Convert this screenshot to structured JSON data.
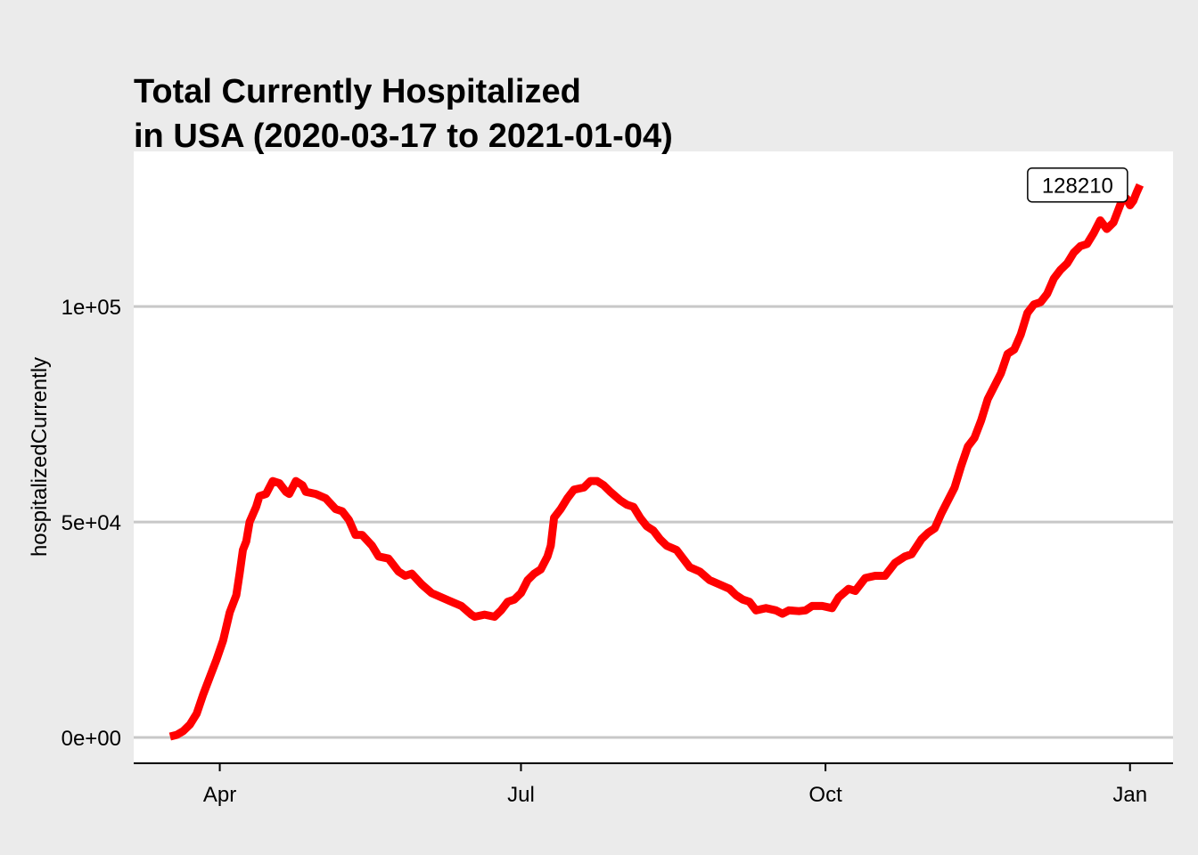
{
  "chart_data": {
    "type": "line",
    "title_line1": "Total Currently Hospitalized",
    "title_line2": "in USA (2020-03-17 to 2021-01-04)",
    "xlabel": "",
    "ylabel": "hospitalizedCurrently",
    "ylim": [
      -6000,
      136000
    ],
    "xlim": [
      "2020-03-06",
      "2021-01-14"
    ],
    "grid": "horizontal major",
    "line_color": "#ff0000",
    "x_ticks": [
      {
        "date": "2020-04-01",
        "label": "Apr"
      },
      {
        "date": "2020-07-01",
        "label": "Jul"
      },
      {
        "date": "2020-10-01",
        "label": "Oct"
      },
      {
        "date": "2021-01-01",
        "label": "Jan"
      }
    ],
    "y_ticks": [
      {
        "value": 0,
        "label": "0e+00"
      },
      {
        "value": 50000,
        "label": "5e+04"
      },
      {
        "value": 100000,
        "label": "1e+05"
      }
    ],
    "annotation": {
      "date": "2021-01-04",
      "value": 128210,
      "label": "128210"
    },
    "series": [
      {
        "points": [
          [
            "2020-03-17",
            200
          ],
          [
            "2020-03-19",
            600
          ],
          [
            "2020-03-21",
            1500
          ],
          [
            "2020-03-23",
            3000
          ],
          [
            "2020-03-25",
            5500
          ],
          [
            "2020-03-27",
            10000
          ],
          [
            "2020-03-29",
            14000
          ],
          [
            "2020-03-31",
            18000
          ],
          [
            "2020-04-02",
            22500
          ],
          [
            "2020-04-04",
            29000
          ],
          [
            "2020-04-06",
            33000
          ],
          [
            "2020-04-07",
            38000
          ],
          [
            "2020-04-08",
            43500
          ],
          [
            "2020-04-09",
            45500
          ],
          [
            "2020-04-10",
            50000
          ],
          [
            "2020-04-12",
            53500
          ],
          [
            "2020-04-13",
            56000
          ],
          [
            "2020-04-15",
            56500
          ],
          [
            "2020-04-17",
            59500
          ],
          [
            "2020-04-19",
            59000
          ],
          [
            "2020-04-21",
            57000
          ],
          [
            "2020-04-22",
            56500
          ],
          [
            "2020-04-24",
            59500
          ],
          [
            "2020-04-26",
            58500
          ],
          [
            "2020-04-27",
            57000
          ],
          [
            "2020-04-30",
            56500
          ],
          [
            "2020-05-03",
            55500
          ],
          [
            "2020-05-06",
            53000
          ],
          [
            "2020-05-08",
            52500
          ],
          [
            "2020-05-10",
            50500
          ],
          [
            "2020-05-12",
            47000
          ],
          [
            "2020-05-14",
            47000
          ],
          [
            "2020-05-17",
            44500
          ],
          [
            "2020-05-19",
            42000
          ],
          [
            "2020-05-22",
            41500
          ],
          [
            "2020-05-25",
            38500
          ],
          [
            "2020-05-27",
            37500
          ],
          [
            "2020-05-29",
            38000
          ],
          [
            "2020-06-01",
            35500
          ],
          [
            "2020-06-04",
            33500
          ],
          [
            "2020-06-07",
            32500
          ],
          [
            "2020-06-10",
            31500
          ],
          [
            "2020-06-13",
            30500
          ],
          [
            "2020-06-16",
            28500
          ],
          [
            "2020-06-17",
            28000
          ],
          [
            "2020-06-20",
            28500
          ],
          [
            "2020-06-23",
            28000
          ],
          [
            "2020-06-25",
            29500
          ],
          [
            "2020-06-27",
            31500
          ],
          [
            "2020-06-29",
            32000
          ],
          [
            "2020-07-01",
            33500
          ],
          [
            "2020-07-03",
            36500
          ],
          [
            "2020-07-05",
            38000
          ],
          [
            "2020-07-07",
            39000
          ],
          [
            "2020-07-09",
            42000
          ],
          [
            "2020-07-10",
            44500
          ],
          [
            "2020-07-11",
            51000
          ],
          [
            "2020-07-13",
            53000
          ],
          [
            "2020-07-15",
            55500
          ],
          [
            "2020-07-17",
            57500
          ],
          [
            "2020-07-20",
            58000
          ],
          [
            "2020-07-22",
            59500
          ],
          [
            "2020-07-24",
            59500
          ],
          [
            "2020-07-26",
            58500
          ],
          [
            "2020-07-28",
            57000
          ],
          [
            "2020-07-31",
            55000
          ],
          [
            "2020-08-02",
            54000
          ],
          [
            "2020-08-04",
            53500
          ],
          [
            "2020-08-06",
            51000
          ],
          [
            "2020-08-08",
            49000
          ],
          [
            "2020-08-10",
            48000
          ],
          [
            "2020-08-12",
            46000
          ],
          [
            "2020-08-14",
            44500
          ],
          [
            "2020-08-17",
            43500
          ],
          [
            "2020-08-19",
            41500
          ],
          [
            "2020-08-21",
            39500
          ],
          [
            "2020-08-24",
            38500
          ],
          [
            "2020-08-27",
            36500
          ],
          [
            "2020-08-30",
            35500
          ],
          [
            "2020-09-02",
            34500
          ],
          [
            "2020-09-04",
            33000
          ],
          [
            "2020-09-06",
            32000
          ],
          [
            "2020-09-08",
            31500
          ],
          [
            "2020-09-10",
            29500
          ],
          [
            "2020-09-13",
            30000
          ],
          [
            "2020-09-16",
            29500
          ],
          [
            "2020-09-18",
            28700
          ],
          [
            "2020-09-20",
            29500
          ],
          [
            "2020-09-23",
            29300
          ],
          [
            "2020-09-25",
            29500
          ],
          [
            "2020-09-27",
            30500
          ],
          [
            "2020-09-30",
            30500
          ],
          [
            "2020-10-03",
            30000
          ],
          [
            "2020-10-05",
            32500
          ],
          [
            "2020-10-08",
            34500
          ],
          [
            "2020-10-10",
            34000
          ],
          [
            "2020-10-13",
            37000
          ],
          [
            "2020-10-16",
            37500
          ],
          [
            "2020-10-19",
            37500
          ],
          [
            "2020-10-22",
            40500
          ],
          [
            "2020-10-25",
            42000
          ],
          [
            "2020-10-27",
            42500
          ],
          [
            "2020-10-30",
            46000
          ],
          [
            "2020-11-01",
            47500
          ],
          [
            "2020-11-03",
            48500
          ],
          [
            "2020-11-05",
            52000
          ],
          [
            "2020-11-07",
            55000
          ],
          [
            "2020-11-09",
            58000
          ],
          [
            "2020-11-11",
            63000
          ],
          [
            "2020-11-13",
            67500
          ],
          [
            "2020-11-15",
            69500
          ],
          [
            "2020-11-17",
            73500
          ],
          [
            "2020-11-19",
            78500
          ],
          [
            "2020-11-21",
            81500
          ],
          [
            "2020-11-23",
            84500
          ],
          [
            "2020-11-25",
            89000
          ],
          [
            "2020-11-27",
            90000
          ],
          [
            "2020-11-29",
            93500
          ],
          [
            "2020-12-01",
            98500
          ],
          [
            "2020-12-03",
            100500
          ],
          [
            "2020-12-05",
            101000
          ],
          [
            "2020-12-07",
            103000
          ],
          [
            "2020-12-09",
            106500
          ],
          [
            "2020-12-11",
            108500
          ],
          [
            "2020-12-13",
            110000
          ],
          [
            "2020-12-15",
            112500
          ],
          [
            "2020-12-17",
            114000
          ],
          [
            "2020-12-19",
            114500
          ],
          [
            "2020-12-21",
            117000
          ],
          [
            "2020-12-23",
            120000
          ],
          [
            "2020-12-25",
            118000
          ],
          [
            "2020-12-27",
            119500
          ],
          [
            "2020-12-29",
            123500
          ],
          [
            "2020-12-30",
            125500
          ],
          [
            "2020-12-31",
            125000
          ],
          [
            "2021-01-01",
            123500
          ],
          [
            "2021-01-02",
            124500
          ],
          [
            "2021-01-03",
            126500
          ],
          [
            "2021-01-04",
            128210
          ]
        ]
      }
    ]
  }
}
